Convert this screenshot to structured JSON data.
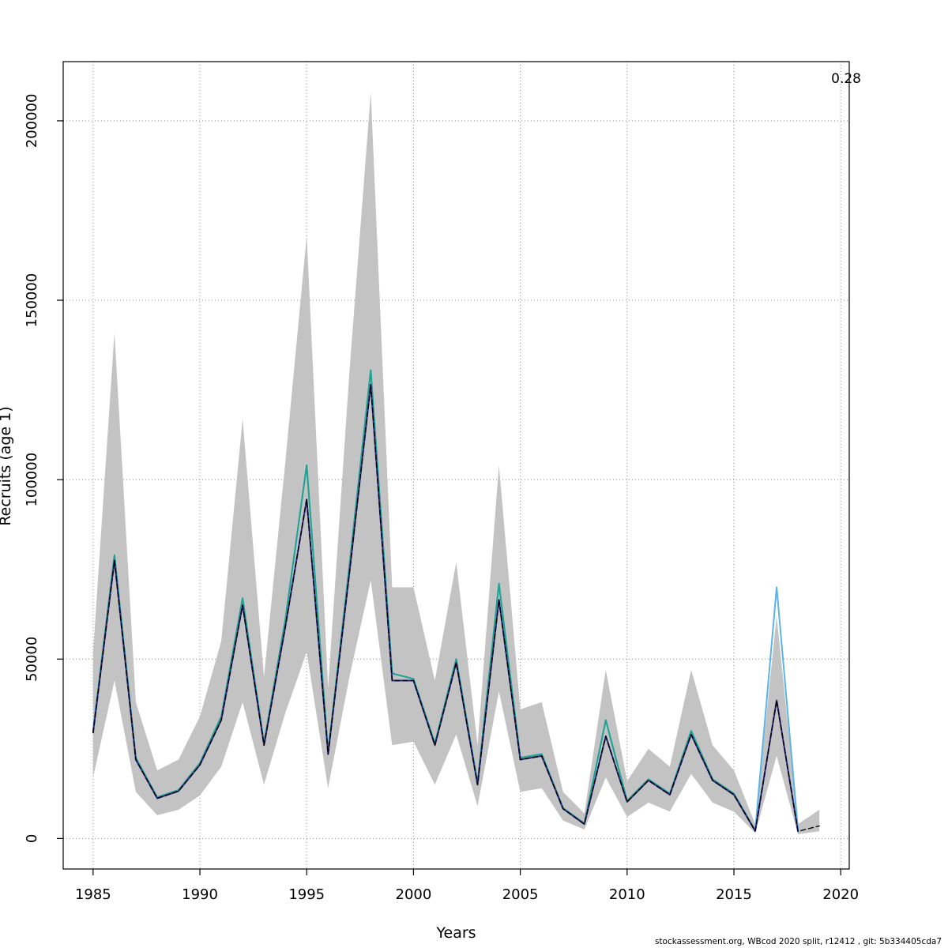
{
  "window": {
    "background": "#ffffff"
  },
  "footer": {
    "credit": "stockassessment.org, WBcod 2020 split, r12412 , git: 5b334405cda7"
  },
  "chart_data": {
    "type": "line",
    "title": "",
    "xlabel": "Years",
    "ylabel": "Recruits (age 1)",
    "grid": "dotted",
    "legend": "none",
    "xlim": [
      1983.6,
      2020.4
    ],
    "ylim": [
      -8500,
      216500
    ],
    "x_ticks": [
      1985,
      1990,
      1995,
      2000,
      2005,
      2010,
      2015,
      2020
    ],
    "y_ticks": [
      0,
      50000,
      100000,
      150000,
      200000
    ],
    "x": [
      1985,
      1986,
      1987,
      1988,
      1989,
      1990,
      1991,
      1992,
      1993,
      1994,
      1995,
      1996,
      1997,
      1998,
      1999,
      2000,
      2001,
      2002,
      2003,
      2004,
      2005,
      2006,
      2007,
      2008,
      2009,
      2010,
      2011,
      2012,
      2013,
      2014,
      2015,
      2016,
      2017,
      2018,
      2019
    ],
    "style": {
      "grid_color": "#8c8c8c",
      "box_color": "#000000",
      "tick_color": "#000000"
    },
    "band": {
      "label": "confidence-interval",
      "color": "#c3c3c3",
      "lower": [
        17000,
        44000,
        13000,
        6500,
        8000,
        12000,
        20000,
        38000,
        15000,
        35000,
        52000,
        14000,
        45000,
        72000,
        26000,
        27000,
        15000,
        29000,
        9000,
        41000,
        13000,
        14000,
        5000,
        2500,
        17000,
        6000,
        10000,
        7500,
        18000,
        10000,
        7500,
        1500,
        23000,
        1200,
        2000
      ],
      "upper": [
        52000,
        141000,
        38000,
        19000,
        22000,
        34000,
        55000,
        117000,
        45000,
        105000,
        168000,
        42000,
        130000,
        208000,
        70000,
        70000,
        44000,
        77000,
        26000,
        104000,
        36000,
        38000,
        13000,
        7000,
        47000,
        16000,
        25000,
        20000,
        47000,
        26000,
        19000,
        4000,
        62000,
        4000,
        8000
      ]
    },
    "series": [
      {
        "id": "light-blue-line",
        "label": "light blue line",
        "color": "#5ab4e8",
        "width": 2,
        "dash": "none",
        "values": [
          30000,
          79000,
          22500,
          11500,
          13500,
          21000,
          34000,
          67000,
          26500,
          61000,
          104000,
          24000,
          76000,
          130500,
          46000,
          44500,
          26500,
          50000,
          15500,
          71000,
          22500,
          23500,
          8500,
          4200,
          33000,
          10500,
          16500,
          12500,
          30000,
          16500,
          12500,
          2200,
          70000,
          2500,
          null
        ]
      },
      {
        "id": "teal-line",
        "label": "teal line",
        "color": "#1fa390",
        "width": 2,
        "dash": "none",
        "values": [
          30000,
          79000,
          22500,
          11500,
          13500,
          21000,
          34000,
          67000,
          26500,
          61000,
          104000,
          24000,
          76000,
          130500,
          46000,
          44500,
          26500,
          50000,
          15500,
          71000,
          22500,
          23500,
          8500,
          4200,
          33000,
          10500,
          16500,
          12500,
          30000,
          16500,
          12500,
          2200,
          null,
          null,
          null
        ]
      },
      {
        "id": "estimate-navy-line",
        "label": "dark blue estimate line",
        "color": "#2f2f8f",
        "width": 2,
        "dash": "none",
        "values": [
          29500,
          77500,
          22000,
          11200,
          13200,
          20500,
          33000,
          65000,
          26000,
          59000,
          94500,
          23500,
          74000,
          126500,
          44000,
          44000,
          26000,
          49000,
          15000,
          66500,
          22000,
          23000,
          8300,
          4000,
          28500,
          10200,
          16200,
          12200,
          29000,
          16200,
          12200,
          2100,
          38500,
          2000,
          null
        ]
      },
      {
        "id": "dashed-black-line",
        "label": "black dashed line",
        "color": "#000000",
        "width": 1.4,
        "dash": "6 4",
        "values": [
          29500,
          77500,
          22000,
          11200,
          13200,
          20500,
          33000,
          65000,
          26000,
          59000,
          94500,
          23500,
          74000,
          126500,
          44000,
          44000,
          26000,
          49000,
          15000,
          66500,
          22000,
          23000,
          8300,
          4000,
          28500,
          10200,
          16200,
          12200,
          29000,
          16200,
          12200,
          2100,
          38500,
          2000,
          3500
        ]
      }
    ],
    "annotations": {
      "top_right_value": "0.28"
    }
  }
}
